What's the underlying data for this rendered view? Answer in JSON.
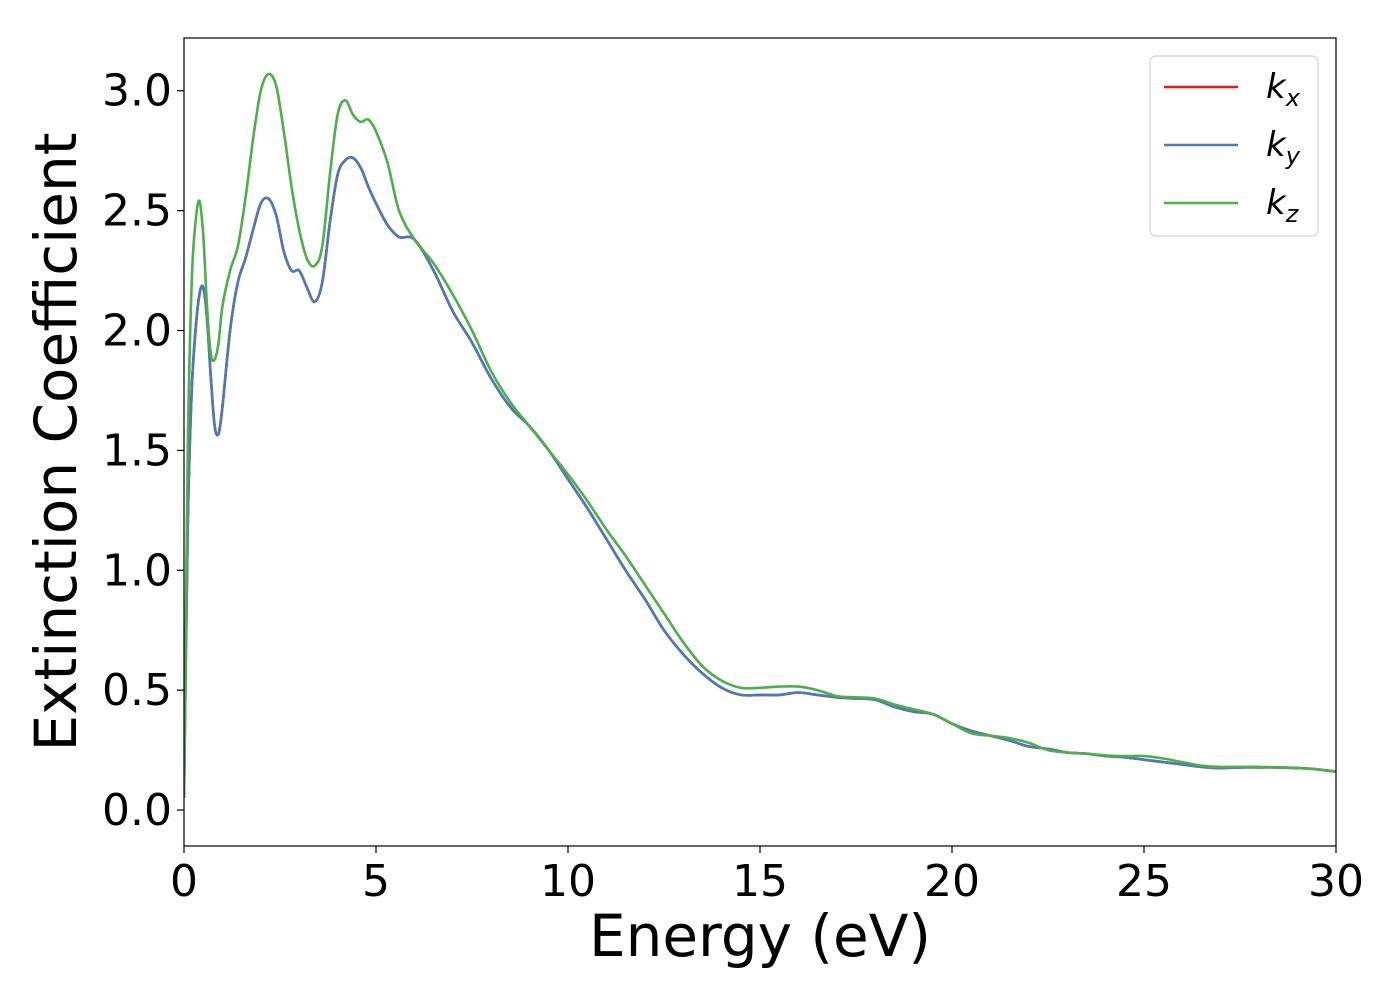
{
  "chart_data": {
    "type": "line",
    "title": "",
    "xlabel": "Energy (eV)",
    "ylabel": "Extinction Coefficient",
    "xlim": [
      0,
      30
    ],
    "ylim": [
      -0.15,
      3.22
    ],
    "xticks": [
      0,
      5,
      10,
      15,
      20,
      25,
      30
    ],
    "yticks": [
      0.0,
      0.5,
      1.0,
      1.5,
      2.0,
      2.5,
      3.0
    ],
    "xtick_labels": [
      "0",
      "5",
      "10",
      "15",
      "20",
      "25",
      "30"
    ],
    "ytick_labels": [
      "0.0",
      "0.5",
      "1.0",
      "1.5",
      "2.0",
      "2.5",
      "3.0"
    ],
    "grid": false,
    "legend_position": "top-right",
    "series": [
      {
        "name": "k_x",
        "name_base": "k",
        "name_sub": "x",
        "color": "#e41a1c",
        "x": [
          0,
          0.1,
          0.2,
          0.3,
          0.4,
          0.5,
          0.6,
          0.7,
          0.8,
          0.9,
          1.0,
          1.2,
          1.4,
          1.6,
          1.8,
          2.0,
          2.2,
          2.4,
          2.6,
          2.8,
          3.0,
          3.2,
          3.4,
          3.6,
          3.8,
          4.0,
          4.2,
          4.4,
          4.6,
          4.8,
          5.0,
          5.3,
          5.6,
          6.0,
          6.5,
          7.0,
          7.5,
          8.0,
          8.5,
          9.0,
          9.5,
          10.0,
          10.5,
          11.0,
          11.5,
          12.0,
          12.5,
          13.0,
          13.5,
          14.0,
          14.5,
          15.0,
          15.5,
          16.0,
          16.5,
          17.0,
          17.5,
          18.0,
          18.5,
          19.0,
          19.5,
          20.0,
          20.5,
          21.0,
          21.5,
          22.0,
          22.5,
          23.0,
          23.5,
          24.0,
          24.5,
          25.0,
          25.5,
          26.0,
          26.5,
          27.0,
          27.5,
          28.0,
          28.5,
          29.0,
          29.5,
          30.0
        ],
        "y": [
          0.05,
          1.2,
          1.75,
          2.0,
          2.15,
          2.18,
          2.05,
          1.8,
          1.6,
          1.57,
          1.68,
          2.0,
          2.2,
          2.3,
          2.42,
          2.53,
          2.55,
          2.48,
          2.33,
          2.25,
          2.25,
          2.18,
          2.12,
          2.2,
          2.45,
          2.65,
          2.71,
          2.72,
          2.68,
          2.6,
          2.53,
          2.44,
          2.39,
          2.38,
          2.25,
          2.08,
          1.95,
          1.8,
          1.68,
          1.6,
          1.5,
          1.38,
          1.26,
          1.13,
          1.0,
          0.88,
          0.75,
          0.65,
          0.57,
          0.51,
          0.48,
          0.48,
          0.48,
          0.49,
          0.48,
          0.47,
          0.465,
          0.46,
          0.43,
          0.41,
          0.4,
          0.36,
          0.33,
          0.31,
          0.29,
          0.265,
          0.255,
          0.24,
          0.235,
          0.225,
          0.22,
          0.21,
          0.2,
          0.19,
          0.18,
          0.175,
          0.178,
          0.178,
          0.178,
          0.175,
          0.17,
          0.16
        ]
      },
      {
        "name": "k_y",
        "name_base": "k",
        "name_sub": "y",
        "color": "#4a7ab8",
        "x": [
          0,
          0.1,
          0.2,
          0.3,
          0.4,
          0.5,
          0.6,
          0.7,
          0.8,
          0.9,
          1.0,
          1.2,
          1.4,
          1.6,
          1.8,
          2.0,
          2.2,
          2.4,
          2.6,
          2.8,
          3.0,
          3.2,
          3.4,
          3.6,
          3.8,
          4.0,
          4.2,
          4.4,
          4.6,
          4.8,
          5.0,
          5.3,
          5.6,
          6.0,
          6.5,
          7.0,
          7.5,
          8.0,
          8.5,
          9.0,
          9.5,
          10.0,
          10.5,
          11.0,
          11.5,
          12.0,
          12.5,
          13.0,
          13.5,
          14.0,
          14.5,
          15.0,
          15.5,
          16.0,
          16.5,
          17.0,
          17.5,
          18.0,
          18.5,
          19.0,
          19.5,
          20.0,
          20.5,
          21.0,
          21.5,
          22.0,
          22.5,
          23.0,
          23.5,
          24.0,
          24.5,
          25.0,
          25.5,
          26.0,
          26.5,
          27.0,
          27.5,
          28.0,
          28.5,
          29.0,
          29.5,
          30.0
        ],
        "y": [
          0.05,
          1.2,
          1.75,
          2.0,
          2.15,
          2.18,
          2.05,
          1.8,
          1.6,
          1.57,
          1.68,
          2.0,
          2.2,
          2.3,
          2.42,
          2.53,
          2.55,
          2.48,
          2.33,
          2.25,
          2.25,
          2.18,
          2.12,
          2.2,
          2.45,
          2.65,
          2.71,
          2.72,
          2.68,
          2.6,
          2.53,
          2.44,
          2.39,
          2.38,
          2.25,
          2.08,
          1.95,
          1.8,
          1.68,
          1.6,
          1.5,
          1.38,
          1.26,
          1.13,
          1.0,
          0.88,
          0.75,
          0.65,
          0.57,
          0.51,
          0.48,
          0.48,
          0.48,
          0.49,
          0.48,
          0.47,
          0.465,
          0.46,
          0.43,
          0.41,
          0.4,
          0.36,
          0.33,
          0.31,
          0.29,
          0.265,
          0.255,
          0.24,
          0.235,
          0.225,
          0.22,
          0.21,
          0.2,
          0.19,
          0.18,
          0.175,
          0.178,
          0.178,
          0.178,
          0.175,
          0.17,
          0.16
        ]
      },
      {
        "name": "k_z",
        "name_base": "k",
        "name_sub": "z",
        "color": "#4daf4a",
        "x": [
          0,
          0.1,
          0.2,
          0.3,
          0.4,
          0.5,
          0.6,
          0.7,
          0.8,
          0.9,
          1.0,
          1.2,
          1.4,
          1.6,
          1.8,
          2.0,
          2.2,
          2.4,
          2.6,
          2.8,
          3.0,
          3.2,
          3.4,
          3.6,
          3.8,
          4.0,
          4.2,
          4.4,
          4.6,
          4.8,
          5.0,
          5.3,
          5.6,
          6.0,
          6.5,
          7.0,
          7.5,
          8.0,
          8.5,
          9.0,
          9.5,
          10.0,
          10.5,
          11.0,
          11.5,
          12.0,
          12.5,
          13.0,
          13.5,
          14.0,
          14.5,
          15.0,
          15.5,
          16.0,
          16.5,
          17.0,
          17.5,
          18.0,
          18.5,
          19.0,
          19.5,
          20.0,
          20.5,
          21.0,
          21.5,
          22.0,
          22.5,
          23.0,
          23.5,
          24.0,
          24.5,
          25.0,
          25.5,
          26.0,
          26.5,
          27.0,
          27.5,
          28.0,
          28.5,
          29.0,
          29.5,
          30.0
        ],
        "y": [
          0.05,
          1.5,
          2.2,
          2.45,
          2.54,
          2.4,
          2.1,
          1.9,
          1.88,
          1.95,
          2.1,
          2.25,
          2.35,
          2.55,
          2.8,
          3.0,
          3.07,
          3.02,
          2.83,
          2.6,
          2.42,
          2.3,
          2.27,
          2.35,
          2.65,
          2.9,
          2.96,
          2.9,
          2.87,
          2.88,
          2.83,
          2.7,
          2.5,
          2.38,
          2.28,
          2.15,
          2.0,
          1.83,
          1.7,
          1.6,
          1.5,
          1.4,
          1.29,
          1.17,
          1.06,
          0.94,
          0.82,
          0.7,
          0.6,
          0.54,
          0.51,
          0.51,
          0.515,
          0.515,
          0.5,
          0.475,
          0.47,
          0.465,
          0.44,
          0.42,
          0.4,
          0.36,
          0.32,
          0.31,
          0.3,
          0.28,
          0.25,
          0.24,
          0.235,
          0.228,
          0.225,
          0.225,
          0.215,
          0.2,
          0.185,
          0.18,
          0.18,
          0.18,
          0.178,
          0.175,
          0.17,
          0.16
        ]
      }
    ]
  }
}
